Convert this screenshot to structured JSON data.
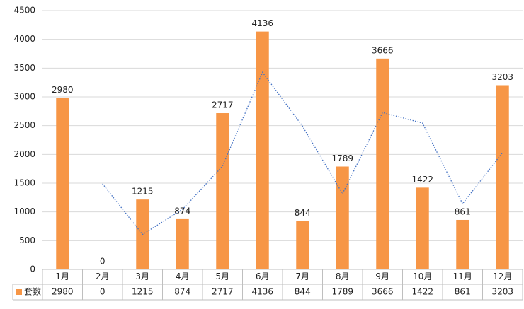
{
  "chart_data": {
    "type": "bar",
    "categories": [
      "1月",
      "2月",
      "3月",
      "4月",
      "5月",
      "6月",
      "7月",
      "8月",
      "9月",
      "10月",
      "11月",
      "12月"
    ],
    "series": [
      {
        "name": "套数",
        "color": "#f79646",
        "values": [
          2980,
          0,
          1215,
          874,
          2717,
          4136,
          844,
          1789,
          3666,
          1422,
          861,
          3203
        ]
      }
    ],
    "trendline": {
      "color": "#4472c4",
      "values": [
        null,
        1490,
        607.5,
        1044.5,
        1795.5,
        3426.5,
        2490,
        1316.5,
        2727.5,
        2544,
        1141.5,
        2032
      ]
    },
    "ylim": [
      0,
      4500
    ],
    "yticks": [
      0,
      500,
      1000,
      1500,
      2000,
      2500,
      3000,
      3500,
      4000,
      4500
    ],
    "grid": true,
    "data_table": true
  }
}
